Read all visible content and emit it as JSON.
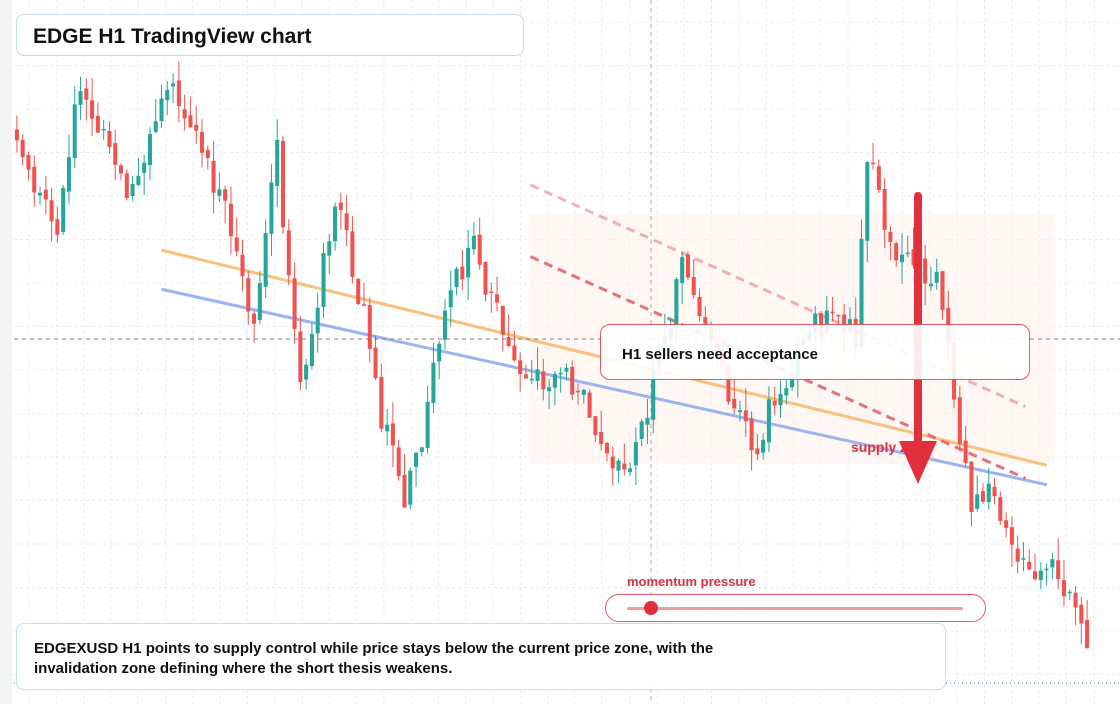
{
  "title": "EDGE H1 TradingView chart",
  "callout": "H1 sellers need acceptance",
  "supply_label": "supply zone",
  "momentum": {
    "label": "momentum pressure",
    "level": 0.07
  },
  "summary": "EDGEXUSD H1 points to supply control while price stays below the current price zone, with the invalidation zone defining where the short thesis weakens.",
  "colors": {
    "bull": "#26a69a",
    "bear": "#ef5350",
    "accent_red": "#e0303d",
    "trend_orange": "#f9c07a",
    "trend_blue": "#9bb3f2",
    "zone_fill": "#fdf1ea"
  },
  "chart_data": {
    "type": "candlestick",
    "symbol": "EDGEXUSD",
    "timeframe": "H1",
    "grid": true,
    "seed": 20240611,
    "candle_count": 186,
    "path_anchors": [
      [
        0,
        0.12
      ],
      [
        8,
        0.28
      ],
      [
        12,
        0.05
      ],
      [
        20,
        0.21
      ],
      [
        28,
        0.06
      ],
      [
        36,
        0.22
      ],
      [
        42,
        0.44
      ],
      [
        46,
        0.16
      ],
      [
        50,
        0.53
      ],
      [
        56,
        0.23
      ],
      [
        60,
        0.37
      ],
      [
        64,
        0.56
      ],
      [
        68,
        0.68
      ],
      [
        70,
        0.64
      ],
      [
        76,
        0.36
      ],
      [
        80,
        0.3
      ],
      [
        86,
        0.47
      ],
      [
        90,
        0.52
      ],
      [
        96,
        0.49
      ],
      [
        102,
        0.59
      ],
      [
        106,
        0.65
      ],
      [
        110,
        0.55
      ],
      [
        116,
        0.34
      ],
      [
        120,
        0.42
      ],
      [
        128,
        0.62
      ],
      [
        138,
        0.42
      ],
      [
        146,
        0.44
      ],
      [
        148,
        0.15
      ],
      [
        152,
        0.31
      ],
      [
        160,
        0.35
      ],
      [
        166,
        0.7
      ],
      [
        170,
        0.69
      ],
      [
        176,
        0.81
      ],
      [
        180,
        0.77
      ],
      [
        184,
        0.87
      ],
      [
        187,
        0.97
      ]
    ],
    "trendlines": [
      {
        "name": "orange",
        "from": [
          0.137,
          0.31
        ],
        "to": [
          0.96,
          0.64
        ]
      },
      {
        "name": "blue",
        "from": [
          0.137,
          0.37
        ],
        "to": [
          0.96,
          0.67
        ]
      }
    ],
    "dashed_resistance": [
      {
        "from": [
          0.48,
          0.21
        ],
        "to": [
          0.94,
          0.55
        ],
        "opacity": 0.45
      },
      {
        "from": [
          0.48,
          0.32
        ],
        "to": [
          0.94,
          0.66
        ],
        "opacity": 0.85
      }
    ],
    "current_price_line": 0.485,
    "last_price_line": 0.97
  }
}
